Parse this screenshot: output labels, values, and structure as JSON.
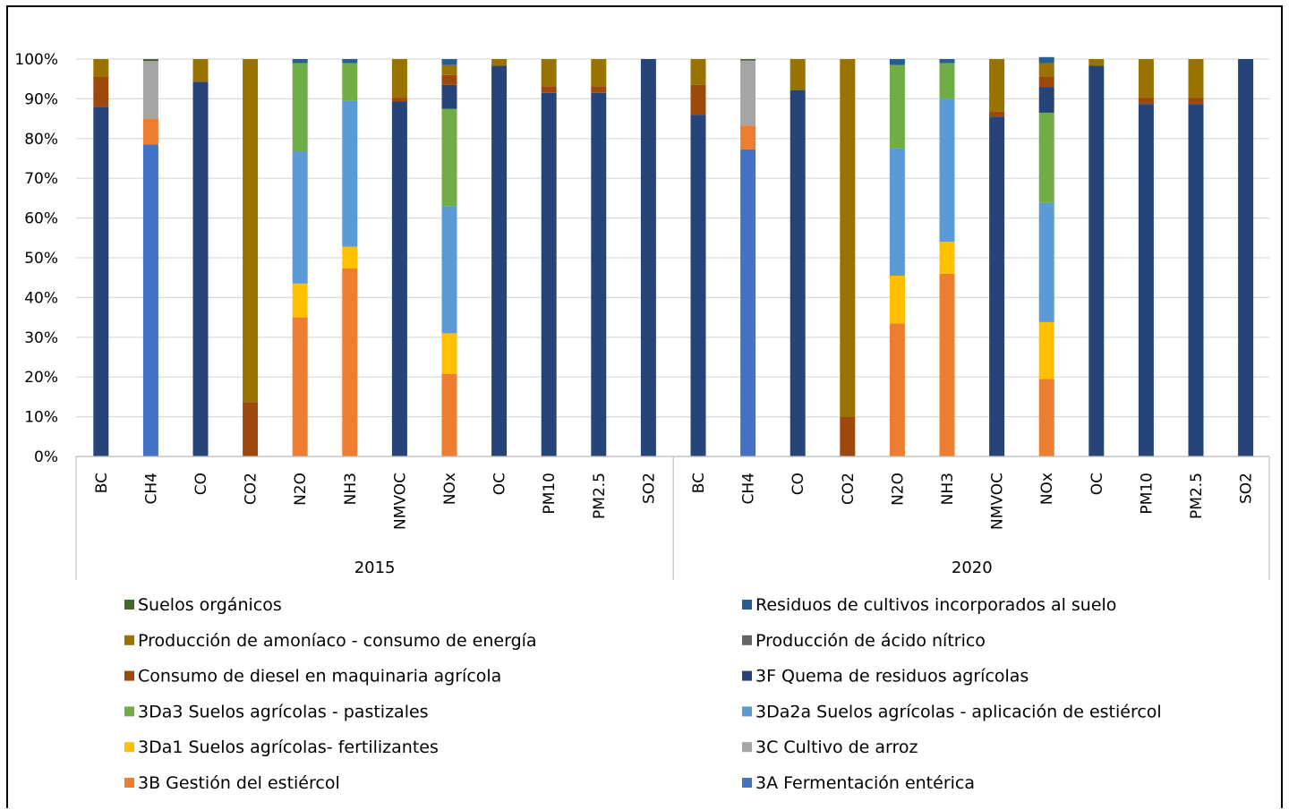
{
  "chart_data": {
    "type": "bar",
    "stacked": true,
    "percent": true,
    "ylim": [
      0,
      100
    ],
    "yticks": [
      "0%",
      "10%",
      "20%",
      "30%",
      "40%",
      "50%",
      "60%",
      "70%",
      "80%",
      "90%",
      "100%"
    ],
    "grid": true,
    "legend_position": "bottom",
    "groups": [
      "2015",
      "2020"
    ],
    "categories": [
      "BC",
      "CH4",
      "CO",
      "CO2",
      "N2O",
      "NH3",
      "NMVOC",
      "NOx",
      "OC",
      "PM10",
      "PM2.5",
      "SO2"
    ],
    "series": [
      {
        "name": "3A Fermentación entérica",
        "color": "#4472C4",
        "values": [
          [
            0,
            78.5,
            0,
            0,
            0,
            0,
            0,
            0,
            0,
            0,
            0,
            0
          ],
          [
            0,
            77.3,
            0,
            0,
            0,
            0,
            0,
            0,
            0,
            0,
            0,
            0
          ]
        ]
      },
      {
        "name": "3B Gestión del estiércol",
        "color": "#ED7D31",
        "values": [
          [
            0,
            6.5,
            0,
            0,
            35,
            47.3,
            0,
            20.8,
            0,
            0,
            0,
            0
          ],
          [
            0,
            6,
            0,
            0,
            33.5,
            46,
            0,
            19.5,
            0,
            0,
            0,
            0
          ]
        ]
      },
      {
        "name": "3C Cultivo de arroz",
        "color": "#A5A5A5",
        "values": [
          [
            0,
            14.5,
            0,
            0,
            0,
            0,
            0,
            0,
            0,
            0,
            0,
            0
          ],
          [
            0,
            16.3,
            0,
            0,
            0,
            0,
            0,
            0,
            0,
            0,
            0,
            0
          ]
        ]
      },
      {
        "name": "3Da1 Suelos agrícolas- fertilizantes",
        "color": "#FFC000",
        "values": [
          [
            0,
            0,
            0,
            0,
            8.5,
            5.5,
            0,
            10.2,
            0,
            0,
            0,
            0
          ],
          [
            0,
            0,
            0,
            0,
            12,
            8,
            0,
            14.3,
            0,
            0,
            0,
            0
          ]
        ]
      },
      {
        "name": "3Da2a Suelos agrícolas - aplicación de estiércol",
        "color": "#5B9BD5",
        "values": [
          [
            0,
            0,
            0,
            0,
            33.3,
            36.7,
            0,
            32,
            0,
            0,
            0,
            0
          ],
          [
            0,
            0,
            0,
            0,
            32,
            36,
            0,
            30,
            0,
            0,
            0,
            0
          ]
        ]
      },
      {
        "name": "3Da3 Suelos agrícolas - pastizales",
        "color": "#70AD47",
        "values": [
          [
            0,
            0,
            0,
            0,
            22.2,
            9.5,
            0,
            24.5,
            0,
            0,
            0,
            0
          ],
          [
            0,
            0,
            0,
            0,
            21,
            9,
            0,
            22.7,
            0,
            0,
            0,
            0
          ]
        ]
      },
      {
        "name": "3F Quema de residuos agrícolas",
        "color": "#264478",
        "values": [
          [
            88,
            0,
            94.3,
            0,
            0,
            0,
            89.3,
            6,
            98.3,
            91.5,
            91.5,
            100
          ],
          [
            86,
            0,
            92.2,
            0,
            0,
            0,
            85.5,
            6.5,
            98.3,
            88.7,
            88.7,
            100
          ]
        ]
      },
      {
        "name": "Consumo de diesel en maquinaria agrícola",
        "color": "#9E480E",
        "values": [
          [
            7.5,
            0,
            0,
            13.7,
            0,
            0,
            1,
            2.5,
            0,
            1.7,
            1.7,
            0
          ],
          [
            7.5,
            0,
            0,
            10,
            0,
            0,
            1.3,
            2.5,
            0,
            1.5,
            1.5,
            0
          ]
        ]
      },
      {
        "name": "Producción de ácido nítrico",
        "color": "#636363",
        "values": [
          [
            0,
            0,
            0,
            0,
            0,
            0,
            0,
            0,
            0,
            0,
            0,
            0
          ],
          [
            0,
            0,
            0,
            0,
            0,
            0,
            0,
            0,
            0,
            0,
            0,
            0
          ]
        ]
      },
      {
        "name": "Producción de amoníaco - consumo de energía",
        "color": "#997300",
        "values": [
          [
            4.5,
            0,
            5.7,
            86.3,
            0,
            0,
            9.7,
            2.5,
            1.7,
            6.8,
            6.8,
            0
          ],
          [
            6.5,
            0,
            7.8,
            90,
            0,
            0,
            13.2,
            3.5,
            1.7,
            9.8,
            9.8,
            0
          ]
        ]
      },
      {
        "name": "Residuos de cultivos incorporados al suelo",
        "color": "#255E91",
        "values": [
          [
            0,
            0,
            0,
            0,
            1,
            1,
            0,
            1.5,
            0,
            0,
            0,
            0
          ],
          [
            0,
            0,
            0,
            0,
            1.5,
            1,
            0,
            1.5,
            0,
            0,
            0,
            0
          ]
        ]
      },
      {
        "name": "Suelos orgánicos",
        "color": "#43682B",
        "values": [
          [
            0,
            0.5,
            0,
            0,
            0,
            0,
            0,
            0,
            0,
            0,
            0,
            0
          ],
          [
            0,
            0.4,
            0,
            0,
            0,
            0,
            0,
            0,
            0,
            0,
            0,
            0
          ]
        ]
      }
    ],
    "legend_order": [
      "Suelos orgánicos",
      "Residuos de cultivos incorporados al suelo",
      "Producción de amoníaco - consumo de energía",
      "Producción de ácido nítrico",
      "Consumo de diesel en maquinaria agrícola",
      "3F Quema de residuos agrícolas",
      "3Da3 Suelos agrícolas - pastizales",
      "3Da2a Suelos agrícolas - aplicación de estiércol",
      "3Da1 Suelos agrícolas- fertilizantes",
      "3C Cultivo de arroz",
      "3B Gestión del estiércol",
      "3A Fermentación entérica"
    ]
  }
}
